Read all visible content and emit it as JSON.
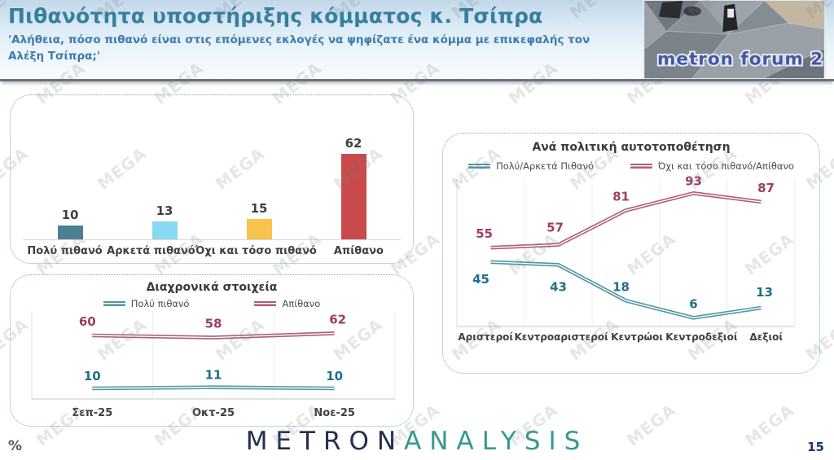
{
  "header": {
    "title": "Πιθανότητα υποστήριξης κόμματος κ. Τσίπρα",
    "subtitle": "'Αλήθεια, πόσο πιθανό είναι στις επόμενες εκλογές να ψηφίζατε ένα κόμμα με επικεφαλής τον Αλέξη Τσίπρα;'",
    "logo_text": "metron forum 2.0",
    "title_color": "#35809f",
    "subtitle_color": "#3d7bab",
    "logo_text_color": "#4656a4"
  },
  "watermark": "MEGA",
  "footer": {
    "percent_label": "%",
    "logo_metron": "METRON",
    "logo_analysis": "ANALYSIS",
    "metron_color": "#252e4d",
    "analysis_color": "#349a8d",
    "page_number": "15"
  },
  "chart_data": [
    {
      "id": "likelihood-bars",
      "type": "bar",
      "title": "",
      "categories": [
        "Πολύ πιθανό",
        "Αρκετά πιθανό",
        "Όχι και τόσο πιθανό",
        "Απίθανο"
      ],
      "values": [
        10,
        13,
        15,
        62
      ],
      "colors": [
        "#4d7f93",
        "#87d9f2",
        "#f6c34c",
        "#c94a4a"
      ],
      "value_label_color": "#3f3f3f",
      "xlabel": "",
      "ylabel": "",
      "ylim": [
        0,
        70
      ],
      "grid": false,
      "legend_position": "none"
    },
    {
      "id": "trend",
      "type": "line",
      "title": "Διαχρονικά στοιχεία",
      "categories": [
        "Σεπ-25",
        "Οκτ-25",
        "Νοε-25"
      ],
      "series": [
        {
          "name": "Πολύ πιθανό",
          "values": [
            10,
            11,
            10
          ],
          "color": "#4f96a3",
          "label_color": "#1f6e87"
        },
        {
          "name": "Απίθανο",
          "values": [
            60,
            58,
            62
          ],
          "color": "#b05c7b",
          "label_color": "#9c3f63"
        }
      ],
      "xlabel": "",
      "ylabel": "",
      "ylim": [
        0,
        80
      ],
      "grid": "vertical",
      "legend_position": "top"
    },
    {
      "id": "political-self-placement",
      "type": "line",
      "title": "Ανά πολιτική αυτοτοποθέτηση",
      "categories": [
        "Αριστεροί",
        "Κεντροαριστεροί",
        "Κεντρώοι",
        "Κεντροδεξιοί",
        "Δεξιοί"
      ],
      "series": [
        {
          "name": "Πολύ/Αρκετά Πιθανό",
          "values": [
            45,
            43,
            18,
            6,
            13
          ],
          "color": "#4f96a3",
          "label_color": "#1f6e87"
        },
        {
          "name": "Όχι και τόσο πιθανό/Απίθανο",
          "values": [
            55,
            57,
            81,
            93,
            87
          ],
          "color": "#b05c7b",
          "label_color": "#9c3f63"
        }
      ],
      "xlabel": "",
      "ylabel": "",
      "ylim": [
        0,
        100
      ],
      "grid": "vertical",
      "legend_position": "top"
    }
  ]
}
